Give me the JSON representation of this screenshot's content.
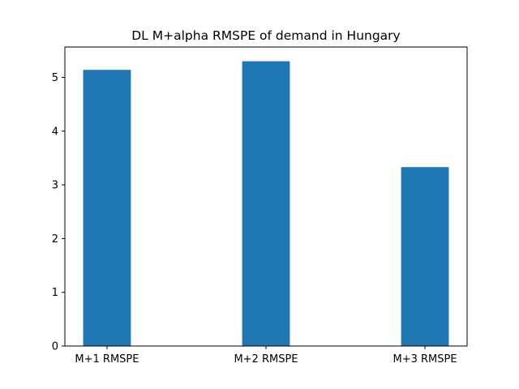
{
  "chart_data": {
    "type": "bar",
    "title": "DL M+alpha RMSPE of demand in Hungary",
    "xlabel": "",
    "ylabel": "",
    "categories": [
      "M+1 RMSPE",
      "M+2 RMSPE",
      "M+3 RMSPE"
    ],
    "values": [
      5.14,
      5.3,
      3.33
    ],
    "ylim": [
      0,
      5.565
    ],
    "yticks": [
      0,
      1,
      2,
      3,
      4,
      5
    ],
    "grid": false,
    "legend": "none",
    "bar_color": "#1f77b4"
  }
}
